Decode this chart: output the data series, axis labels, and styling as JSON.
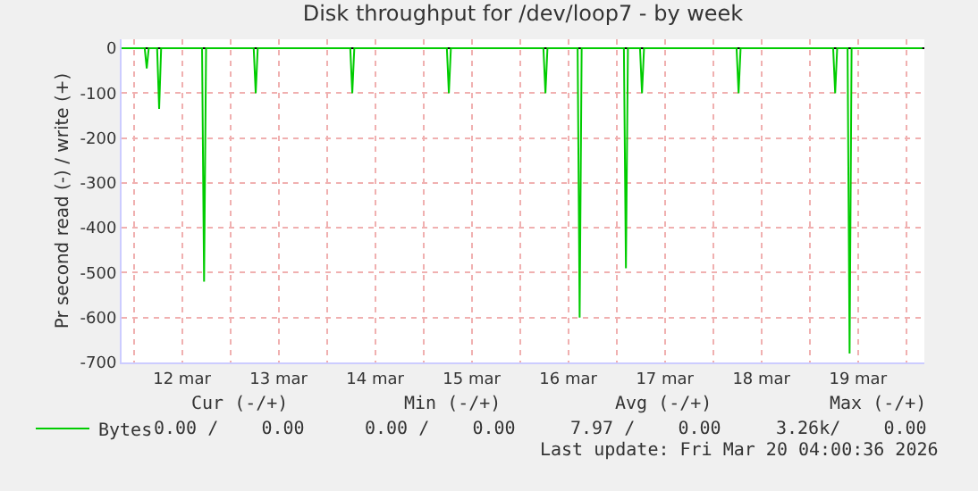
{
  "chart_data": {
    "type": "line",
    "title": "Disk throughput for /dev/loop7 - by week",
    "ylabel": "Pr second read (-) / write (+)",
    "x": [
      "2026-03-11T21:00",
      "2026-03-12T02:45",
      "2026-03-12T03:15",
      "2026-03-12T03:45",
      "2026-03-12T05:50",
      "2026-03-12T06:20",
      "2026-03-12T06:50",
      "2026-03-12T17:00",
      "2026-03-12T17:30",
      "2026-03-12T18:00",
      "2026-03-13T05:50",
      "2026-03-13T06:20",
      "2026-03-13T06:50",
      "2026-03-14T05:50",
      "2026-03-14T06:20",
      "2026-03-14T06:50",
      "2026-03-15T05:50",
      "2026-03-15T06:20",
      "2026-03-15T06:50",
      "2026-03-16T05:50",
      "2026-03-16T06:20",
      "2026-03-16T06:50",
      "2026-03-16T14:20",
      "2026-03-16T14:50",
      "2026-03-16T15:20",
      "2026-03-17T01:50",
      "2026-03-17T02:20",
      "2026-03-17T02:50",
      "2026-03-17T05:50",
      "2026-03-17T06:20",
      "2026-03-17T06:50",
      "2026-03-18T05:50",
      "2026-03-18T06:20",
      "2026-03-18T06:50",
      "2026-03-19T05:50",
      "2026-03-19T06:20",
      "2026-03-19T06:50",
      "2026-03-19T09:25",
      "2026-03-19T09:55",
      "2026-03-19T10:25",
      "2026-03-20T04:00"
    ],
    "series": [
      {
        "name": "Bytes",
        "color": "#00cc00",
        "values": [
          0,
          0,
          -45,
          0,
          0,
          -135,
          0,
          0,
          -520,
          0,
          0,
          -100,
          0,
          0,
          -100,
          0,
          0,
          -100,
          0,
          0,
          -100,
          0,
          0,
          -600,
          0,
          0,
          -490,
          0,
          0,
          -100,
          0,
          0,
          -100,
          0,
          0,
          -100,
          0,
          0,
          -680,
          0,
          0
        ]
      }
    ],
    "xlim": [
      "2026-03-11T21:00",
      "2026-03-20T04:30"
    ],
    "xticks": [
      {
        "value": "2026-03-12T00:00",
        "label": null
      },
      {
        "value": "2026-03-12T12:00",
        "label": "12 mar"
      },
      {
        "value": "2026-03-13T00:00",
        "label": null
      },
      {
        "value": "2026-03-13T12:00",
        "label": "13 mar"
      },
      {
        "value": "2026-03-14T00:00",
        "label": null
      },
      {
        "value": "2026-03-14T12:00",
        "label": "14 mar"
      },
      {
        "value": "2026-03-15T00:00",
        "label": null
      },
      {
        "value": "2026-03-15T12:00",
        "label": "15 mar"
      },
      {
        "value": "2026-03-16T00:00",
        "label": null
      },
      {
        "value": "2026-03-16T12:00",
        "label": "16 mar"
      },
      {
        "value": "2026-03-17T00:00",
        "label": null
      },
      {
        "value": "2026-03-17T12:00",
        "label": "17 mar"
      },
      {
        "value": "2026-03-18T00:00",
        "label": null
      },
      {
        "value": "2026-03-18T12:00",
        "label": "18 mar"
      },
      {
        "value": "2026-03-19T00:00",
        "label": null
      },
      {
        "value": "2026-03-19T12:00",
        "label": "19 mar"
      },
      {
        "value": "2026-03-20T00:00",
        "label": null
      }
    ],
    "ylim": [
      -700,
      20
    ],
    "yticks": [
      -700,
      -600,
      -500,
      -400,
      -300,
      -200,
      -100,
      0
    ],
    "grid": true,
    "legend": "bottom left",
    "marker": "none",
    "line_style": "solid",
    "annotations": [
      "Cur (-/+)",
      "Min (-/+)",
      "Avg (-/+)",
      "Max (-/+)",
      "0.00 /    0.00",
      "0.00 /    0.00",
      "7.97 /    0.00",
      "3.26k/    0.00",
      "Last update: Fri Mar 20 04:00:36 2026"
    ]
  }
}
